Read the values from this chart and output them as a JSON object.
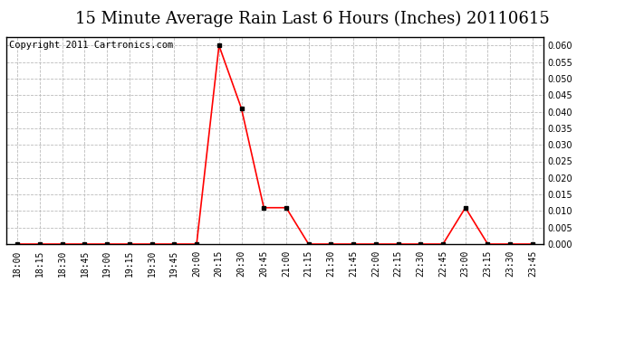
{
  "title": "15 Minute Average Rain Last 6 Hours (Inches) 20110615",
  "copyright_text": "Copyright 2011 Cartronics.com",
  "background_color": "#ffffff",
  "plot_bg_color": "#ffffff",
  "grid_color": "#bbbbbb",
  "line_color": "#ff0000",
  "marker_color": "#000000",
  "title_color": "#000000",
  "x_labels": [
    "18:00",
    "18:15",
    "18:30",
    "18:45",
    "19:00",
    "19:15",
    "19:30",
    "19:45",
    "20:00",
    "20:15",
    "20:30",
    "20:45",
    "21:00",
    "21:15",
    "21:30",
    "21:45",
    "22:00",
    "22:15",
    "22:30",
    "22:45",
    "23:00",
    "23:15",
    "23:30",
    "23:45"
  ],
  "values": [
    0.0,
    0.0,
    0.0,
    0.0,
    0.0,
    0.0,
    0.0,
    0.0,
    0.0,
    0.06,
    0.041,
    0.011,
    0.011,
    0.0,
    0.0,
    0.0,
    0.0,
    0.0,
    0.0,
    0.0,
    0.011,
    0.0,
    0.0,
    0.0
  ],
  "ylim": [
    0.0,
    0.0625
  ],
  "yticks": [
    0.0,
    0.005,
    0.01,
    0.015,
    0.02,
    0.025,
    0.03,
    0.035,
    0.04,
    0.045,
    0.05,
    0.055,
    0.06
  ],
  "title_fontsize": 13,
  "copyright_fontsize": 7.5,
  "tick_fontsize": 7,
  "ylabel_fontsize": 8
}
